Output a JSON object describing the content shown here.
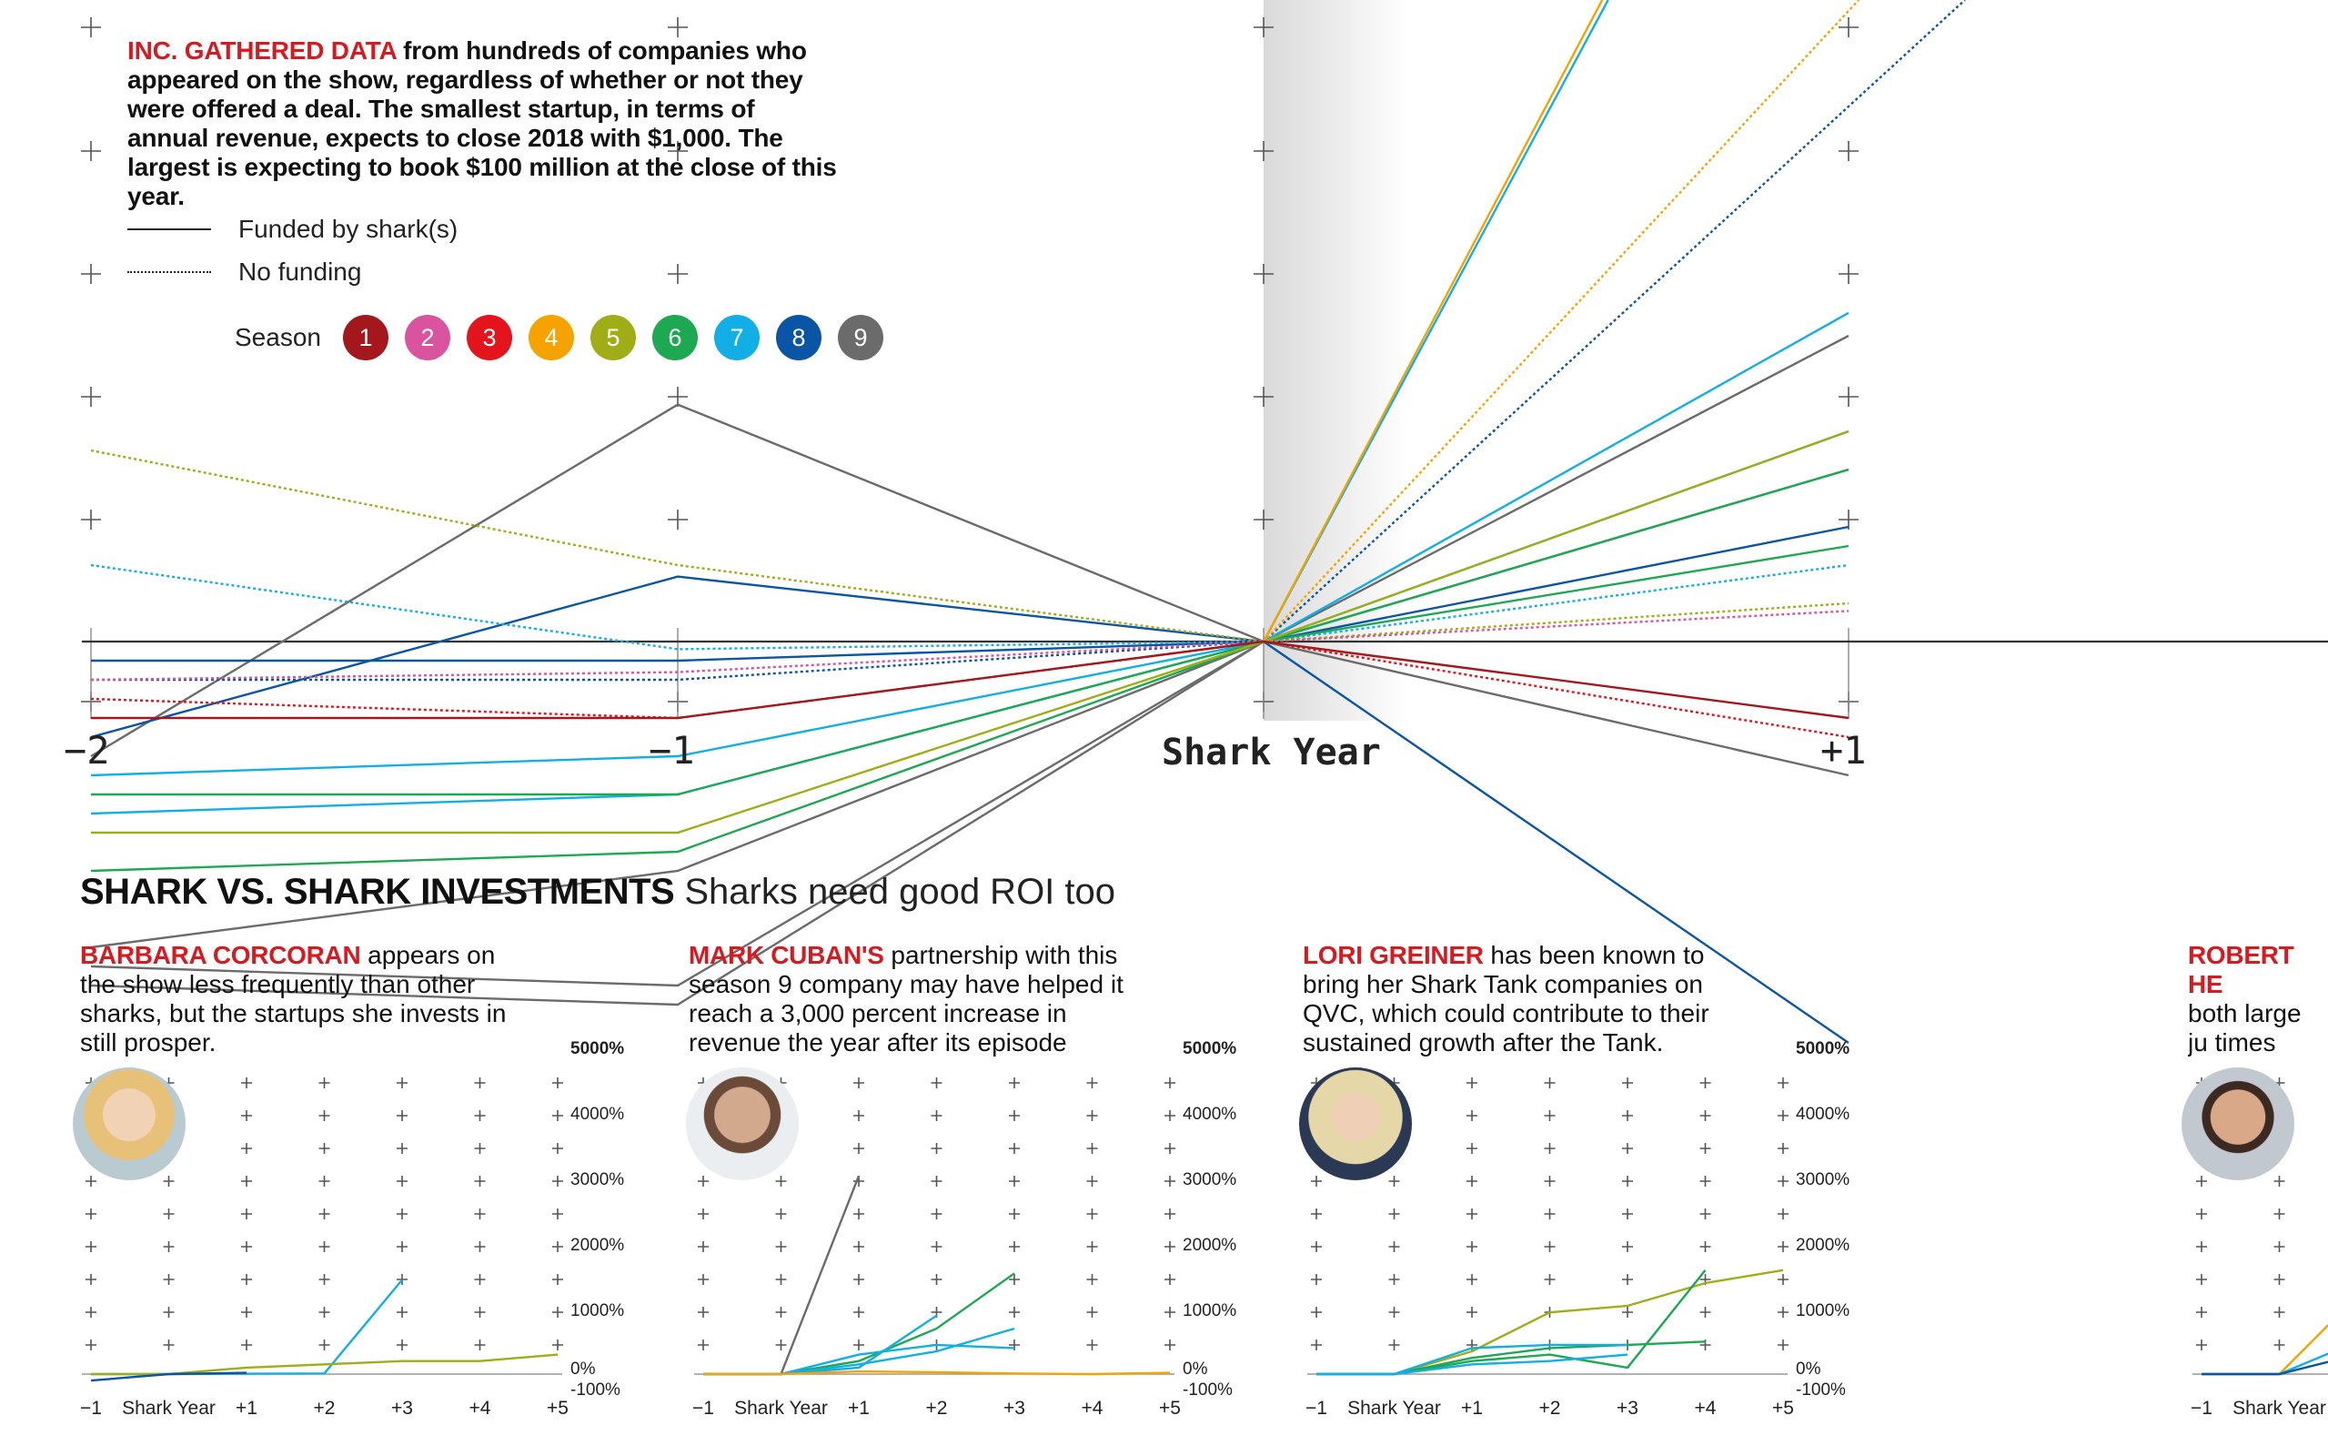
{
  "intro": {
    "highlight": "INC. GATHERED DATA",
    "text": " from hundreds of companies who appeared on the show, regardless of whether or not they were offered a deal. The smallest startup, in terms of annual revenue, expects to close 2018 with $1,000. The largest is expecting to book $100 million at the close of this year."
  },
  "legend": {
    "funded": "Funded by shark(s)",
    "no_funding": "No funding",
    "season_label": "Season",
    "seasons": [
      {
        "label": "1",
        "color": "#a4181d"
      },
      {
        "label": "2",
        "color": "#d9539f"
      },
      {
        "label": "3",
        "color": "#e3141b"
      },
      {
        "label": "4",
        "color": "#f5a300"
      },
      {
        "label": "5",
        "color": "#a0ad16"
      },
      {
        "label": "6",
        "color": "#1da852"
      },
      {
        "label": "7",
        "color": "#12aee6"
      },
      {
        "label": "8",
        "color": "#0a55a5"
      },
      {
        "label": "9",
        "color": "#6b6b6b"
      }
    ]
  },
  "axis": {
    "labels": [
      "−2",
      "−1",
      "Shark Year",
      "+1"
    ]
  },
  "section": {
    "title": "SHARK VS. SHARK INVESTMENTS",
    "subtitle": "Sharks need good ROI too"
  },
  "sharks": [
    {
      "name": "BARBARA CORCORAN",
      "text": " appears on the show less frequently than other sharks, but the startups she invests in still prosper."
    },
    {
      "name": "MARK CUBAN'S",
      "text": " partnership with this season 9 company may have helped it reach a 3,000 percent increase in revenue the year after its episode aired,"
    },
    {
      "name": "LORI GREINER",
      "text": " has been known to bring her Shark Tank companies on QVC, which could contribute to their sustained growth after the Tank."
    },
    {
      "name": "ROBERT HE",
      "text": "both large ju times follow slow, sustain"
    }
  ],
  "small_axis": {
    "y_labels": [
      "5000%",
      "4000%",
      "3000%",
      "2000%",
      "1000%",
      "0%",
      "-100%"
    ],
    "x_labels": [
      "−1",
      "Shark Year",
      "+1",
      "+2",
      "+3",
      "+4",
      "+5"
    ],
    "partial_x": [
      "−1",
      "Shark Year",
      "+"
    ]
  },
  "chart_data": [
    {
      "type": "line",
      "title": "",
      "xlabel": "Shark Year",
      "x": [
        -2,
        -1,
        0,
        1
      ],
      "y_unit": "relative revenue (0 = Shark Year)",
      "note": "Each line is one company; solid = funded by shark(s), dotted = no funding; color = season.",
      "series": [
        {
          "season": 9,
          "funded": true,
          "values": [
            -0.3,
            0.62,
            0,
            -0.35
          ]
        },
        {
          "season": 9,
          "funded": true,
          "values": [
            -0.8,
            -0.6,
            0,
            0.45
          ]
        },
        {
          "season": 9,
          "funded": true,
          "values": [
            -0.85,
            -0.9,
            0,
            0.8
          ]
        },
        {
          "season": 9,
          "funded": true,
          "values": [
            -0.9,
            -0.95,
            0,
            null
          ]
        },
        {
          "season": 8,
          "funded": true,
          "values": [
            -0.25,
            0.17,
            0,
            -1.05
          ]
        },
        {
          "season": 8,
          "funded": true,
          "values": [
            -0.05,
            -0.05,
            0,
            0.3
          ]
        },
        {
          "season": 8,
          "funded": false,
          "values": [
            -0.1,
            -0.1,
            0,
            1.4
          ]
        },
        {
          "season": 7,
          "funded": true,
          "values": [
            -0.45,
            -0.4,
            0,
            0.86
          ]
        },
        {
          "season": 7,
          "funded": false,
          "values": [
            0.2,
            -0.02,
            0,
            0.2
          ]
        },
        {
          "season": 7,
          "funded": true,
          "values": [
            -0.35,
            -0.3,
            0,
            0.55
          ]
        },
        {
          "season": 7,
          "funded": true,
          "values": [
            null,
            null,
            0,
            2.85
          ]
        },
        {
          "season": 6,
          "funded": true,
          "values": [
            -0.6,
            -0.55,
            0,
            0.45
          ]
        },
        {
          "season": 6,
          "funded": true,
          "values": [
            -0.4,
            -0.4,
            0,
            0.25
          ]
        },
        {
          "season": 5,
          "funded": false,
          "values": [
            0.5,
            0.2,
            0,
            0.1
          ]
        },
        {
          "season": 5,
          "funded": true,
          "values": [
            -0.5,
            -0.5,
            0,
            0.55
          ]
        },
        {
          "season": 4,
          "funded": false,
          "values": [
            null,
            null,
            0,
            1.65
          ]
        },
        {
          "season": 4,
          "funded": true,
          "values": [
            null,
            null,
            0,
            2.9
          ]
        },
        {
          "season": 3,
          "funded": false,
          "values": [
            -0.15,
            -0.2,
            0,
            -0.25
          ]
        },
        {
          "season": 2,
          "funded": false,
          "values": [
            -0.1,
            -0.08,
            0,
            0.08
          ]
        },
        {
          "season": 1,
          "funded": true,
          "values": [
            -0.2,
            -0.2,
            0,
            -0.2
          ]
        }
      ]
    },
    {
      "type": "line",
      "title": "BARBARA CORCORAN",
      "x": [
        "-1",
        "Shark Year",
        "+1",
        "+2",
        "+3",
        "+4",
        "+5"
      ],
      "ylim": [
        -100,
        5000
      ],
      "series": [
        {
          "color": "#12aee6",
          "values": [
            0,
            0,
            5,
            10,
            1450,
            null,
            null
          ]
        },
        {
          "color": "#a0ad16",
          "values": [
            0,
            0,
            100,
            150,
            200,
            200,
            300
          ]
        },
        {
          "color": "#0a55a5",
          "values": [
            -100,
            0,
            20,
            null,
            null,
            null,
            null
          ]
        }
      ]
    },
    {
      "type": "line",
      "title": "MARK CUBAN'S",
      "x": [
        "-1",
        "Shark Year",
        "+1",
        "+2",
        "+3",
        "+4",
        "+5"
      ],
      "ylim": [
        -100,
        5000
      ],
      "series": [
        {
          "color": "#6b6b6b",
          "values": [
            0,
            0,
            3050,
            null,
            null,
            null,
            null
          ]
        },
        {
          "color": "#1da852",
          "values": [
            0,
            0,
            200,
            700,
            1550,
            null,
            null
          ]
        },
        {
          "color": "#12aee6",
          "values": [
            0,
            0,
            100,
            900,
            null,
            null,
            null
          ]
        },
        {
          "color": "#12aee6",
          "values": [
            0,
            0,
            150,
            350,
            700,
            null,
            null
          ]
        },
        {
          "color": "#12aee6",
          "values": [
            0,
            0,
            300,
            450,
            400,
            null,
            null
          ]
        },
        {
          "color": "#f5a300",
          "values": [
            0,
            0,
            40,
            30,
            10,
            0,
            20
          ]
        }
      ]
    },
    {
      "type": "line",
      "title": "LORI GREINER",
      "x": [
        "-1",
        "Shark Year",
        "+1",
        "+2",
        "+3",
        "+4",
        "+5"
      ],
      "ylim": [
        -100,
        5000
      ],
      "series": [
        {
          "color": "#a0ad16",
          "values": [
            0,
            0,
            350,
            950,
            1050,
            1400,
            1600
          ]
        },
        {
          "color": "#1da852",
          "values": [
            0,
            0,
            200,
            300,
            100,
            1600,
            null
          ]
        },
        {
          "color": "#1da852",
          "values": [
            0,
            0,
            250,
            400,
            450,
            500,
            null
          ]
        },
        {
          "color": "#12aee6",
          "values": [
            0,
            0,
            400,
            450,
            450,
            null,
            null
          ]
        },
        {
          "color": "#12aee6",
          "values": [
            0,
            0,
            150,
            200,
            300,
            null,
            null
          ]
        }
      ]
    },
    {
      "type": "line",
      "title": "ROBERT HE",
      "x": [
        "-1",
        "Shark Year",
        "+"
      ],
      "ylim": [
        -100,
        5000
      ],
      "series": [
        {
          "color": "#f5a300",
          "values": [
            0,
            0,
            1200
          ]
        },
        {
          "color": "#12aee6",
          "values": [
            0,
            0,
            500
          ]
        },
        {
          "color": "#0a55a5",
          "values": [
            0,
            0,
            300
          ]
        }
      ]
    }
  ]
}
